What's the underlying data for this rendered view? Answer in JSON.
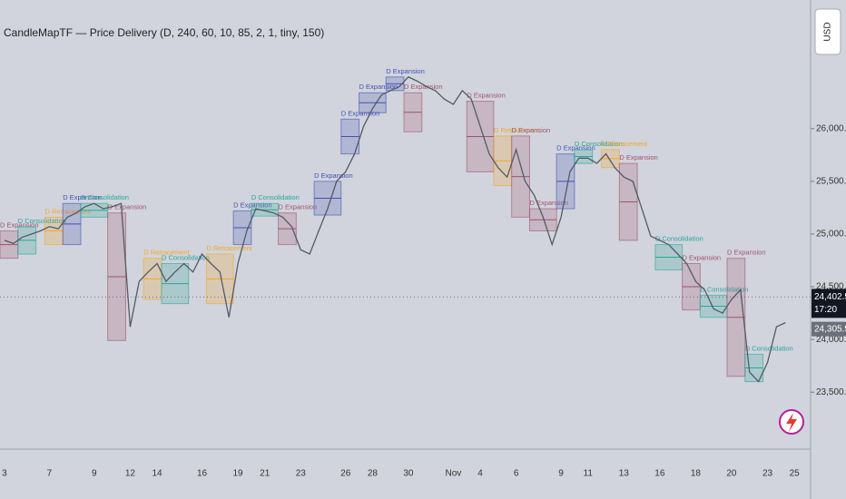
{
  "chart_data": {
    "type": "line",
    "title": "CandleMapTF — Price Delivery (D, 240, 60, 10, 85, 2, 1, tiny, 150)",
    "currency": "USD",
    "categories": [
      "3",
      null,
      null,
      null,
      null,
      "7",
      null,
      null,
      null,
      null,
      "9",
      null,
      null,
      null,
      "12",
      null,
      null,
      "14",
      null,
      null,
      null,
      null,
      "16",
      null,
      null,
      null,
      "19",
      null,
      null,
      "21",
      null,
      null,
      null,
      "23",
      null,
      null,
      null,
      null,
      "26",
      null,
      null,
      "28",
      null,
      null,
      null,
      "30",
      null,
      null,
      null,
      null,
      "Nov",
      null,
      null,
      "4",
      null,
      null,
      null,
      "6",
      null,
      null,
      null,
      null,
      "9",
      null,
      null,
      "11",
      null,
      null,
      null,
      "13",
      null,
      null,
      null,
      "16",
      null,
      null,
      null,
      "18",
      null,
      null,
      null,
      "20",
      null,
      null,
      null,
      "23",
      null,
      null,
      "25",
      null
    ],
    "series": [
      {
        "color": "#555a63",
        "values": [
          24940,
          24910,
          24970,
          25000,
          25030,
          25070,
          25050,
          25160,
          25200,
          25260,
          25290,
          25240,
          25260,
          25290,
          24120,
          24550,
          24640,
          24720,
          24550,
          24640,
          24720,
          24640,
          24810,
          24720,
          24640,
          24210,
          24720,
          25030,
          25240,
          25220,
          25200,
          25160,
          25070,
          24850,
          24810,
          25030,
          25240,
          25500,
          25590,
          25760,
          26020,
          26190,
          26320,
          26360,
          26400,
          26490,
          26450,
          26400,
          26360,
          26280,
          26230,
          26360,
          26280,
          26020,
          25760,
          25630,
          25540,
          25800,
          25500,
          25370,
          25160,
          24900,
          25160,
          25590,
          25720,
          25720,
          25670,
          25760,
          25630,
          25540,
          25500,
          25240,
          24980,
          24940,
          24900,
          24810,
          24720,
          24550,
          24470,
          24290,
          24250,
          24380,
          24470,
          23690,
          23600,
          23780,
          24120,
          24160,
          null,
          null
        ]
      }
    ],
    "zones": [
      {
        "label": "D Expansion",
        "color": "#a0526e",
        "x": [
          0,
          2
        ],
        "high": 25030,
        "low": 24770
      },
      {
        "label": "D Consolidation",
        "color": "#26a69a",
        "x": [
          2,
          4
        ],
        "high": 25070,
        "low": 24810
      },
      {
        "label": "D Retracement",
        "color": "#f5a623",
        "x": [
          5,
          7
        ],
        "high": 25160,
        "low": 24900
      },
      {
        "label": "D Expansion",
        "color": "#3f51b5",
        "x": [
          7,
          9
        ],
        "high": 25290,
        "low": 24900
      },
      {
        "label": "D Consolidation",
        "color": "#26a69a",
        "x": [
          9,
          12
        ],
        "high": 25290,
        "low": 25160
      },
      {
        "label": "D Expansion",
        "color": "#a0526e",
        "x": [
          12,
          14
        ],
        "high": 25200,
        "low": 23990
      },
      {
        "label": "D Retracement",
        "color": "#f5a623",
        "x": [
          16,
          18
        ],
        "high": 24770,
        "low": 24380
      },
      {
        "label": "D Consolidation",
        "color": "#26a69a",
        "x": [
          18,
          21
        ],
        "high": 24720,
        "low": 24340
      },
      {
        "label": "D Retracement",
        "color": "#f5a623",
        "x": [
          23,
          26
        ],
        "high": 24810,
        "low": 24340
      },
      {
        "label": "D Expansion",
        "color": "#3f51b5",
        "x": [
          26,
          28
        ],
        "high": 25220,
        "low": 24900
      },
      {
        "label": "D Consolidation",
        "color": "#26a69a",
        "x": [
          28,
          31
        ],
        "high": 25290,
        "low": 25170
      },
      {
        "label": "D Expansion",
        "color": "#a0526e",
        "x": [
          31,
          33
        ],
        "high": 25200,
        "low": 24900
      },
      {
        "label": "D Expansion",
        "color": "#3f51b5",
        "x": [
          35,
          38
        ],
        "high": 25500,
        "low": 25180
      },
      {
        "label": "D Expansion",
        "color": "#3f51b5",
        "x": [
          38,
          40
        ],
        "high": 26090,
        "low": 25760
      },
      {
        "label": "D Expansion",
        "color": "#3f51b5",
        "x": [
          40,
          43
        ],
        "high": 26340,
        "low": 26150
      },
      {
        "label": "D Expansion",
        "color": "#3f51b5",
        "x": [
          43,
          45
        ],
        "high": 26490,
        "low": 26360
      },
      {
        "label": "D Expansion",
        "color": "#a0526e",
        "x": [
          45,
          47
        ],
        "high": 26340,
        "low": 25970
      },
      {
        "label": "D Expansion",
        "color": "#a0526e",
        "x": [
          52,
          55
        ],
        "high": 26260,
        "low": 25590
      },
      {
        "label": "D Retracement",
        "color": "#f5a623",
        "x": [
          55,
          57
        ],
        "high": 25930,
        "low": 25460
      },
      {
        "label": "D Expansion",
        "color": "#a0526e",
        "x": [
          57,
          59
        ],
        "high": 25930,
        "low": 25160
      },
      {
        "label": "D Expansion",
        "color": "#a0526e",
        "x": [
          59,
          62
        ],
        "high": 25240,
        "low": 25030
      },
      {
        "label": "D Expansion",
        "color": "#3f51b5",
        "x": [
          62,
          64
        ],
        "high": 25760,
        "low": 25240
      },
      {
        "label": "D Consolidation",
        "color": "#26a69a",
        "x": [
          64,
          66
        ],
        "high": 25800,
        "low": 25670
      },
      {
        "label": "D Retracement",
        "color": "#f5a623",
        "x": [
          67,
          69
        ],
        "high": 25800,
        "low": 25630
      },
      {
        "label": "D Expansion",
        "color": "#a0526e",
        "x": [
          69,
          71
        ],
        "high": 25670,
        "low": 24940
      },
      {
        "label": "D Consolidation",
        "color": "#26a69a",
        "x": [
          73,
          76
        ],
        "high": 24900,
        "low": 24660
      },
      {
        "label": "D Expansion",
        "color": "#a0526e",
        "x": [
          76,
          78
        ],
        "high": 24720,
        "low": 24280
      },
      {
        "label": "D Consolidation",
        "color": "#26a69a",
        "x": [
          78,
          81
        ],
        "high": 24420,
        "low": 24210
      },
      {
        "label": "D Expansion",
        "color": "#a0526e",
        "x": [
          81,
          83
        ],
        "high": 24770,
        "low": 23650
      },
      {
        "label": "D Consolidation",
        "color": "#26a69a",
        "x": [
          83,
          85
        ],
        "high": 23860,
        "low": 23600
      }
    ],
    "ylim": [
      22960,
      27220
    ],
    "yticks": [
      {
        "value": 26000,
        "label": "26,000.00"
      },
      {
        "value": 25500,
        "label": "25,500.00"
      },
      {
        "value": 25000,
        "label": "25,000.00"
      },
      {
        "value": 24500,
        "label": "24,500.00"
      },
      {
        "value": 24000,
        "label": "24,000.00"
      },
      {
        "value": 23500,
        "label": "23,500.00"
      }
    ],
    "last_price": {
      "value": 24402.5,
      "label": "24,402.50"
    },
    "countdown": "17:20",
    "marker_price": {
      "value": 24305.5,
      "label": "24,305.50"
    }
  }
}
